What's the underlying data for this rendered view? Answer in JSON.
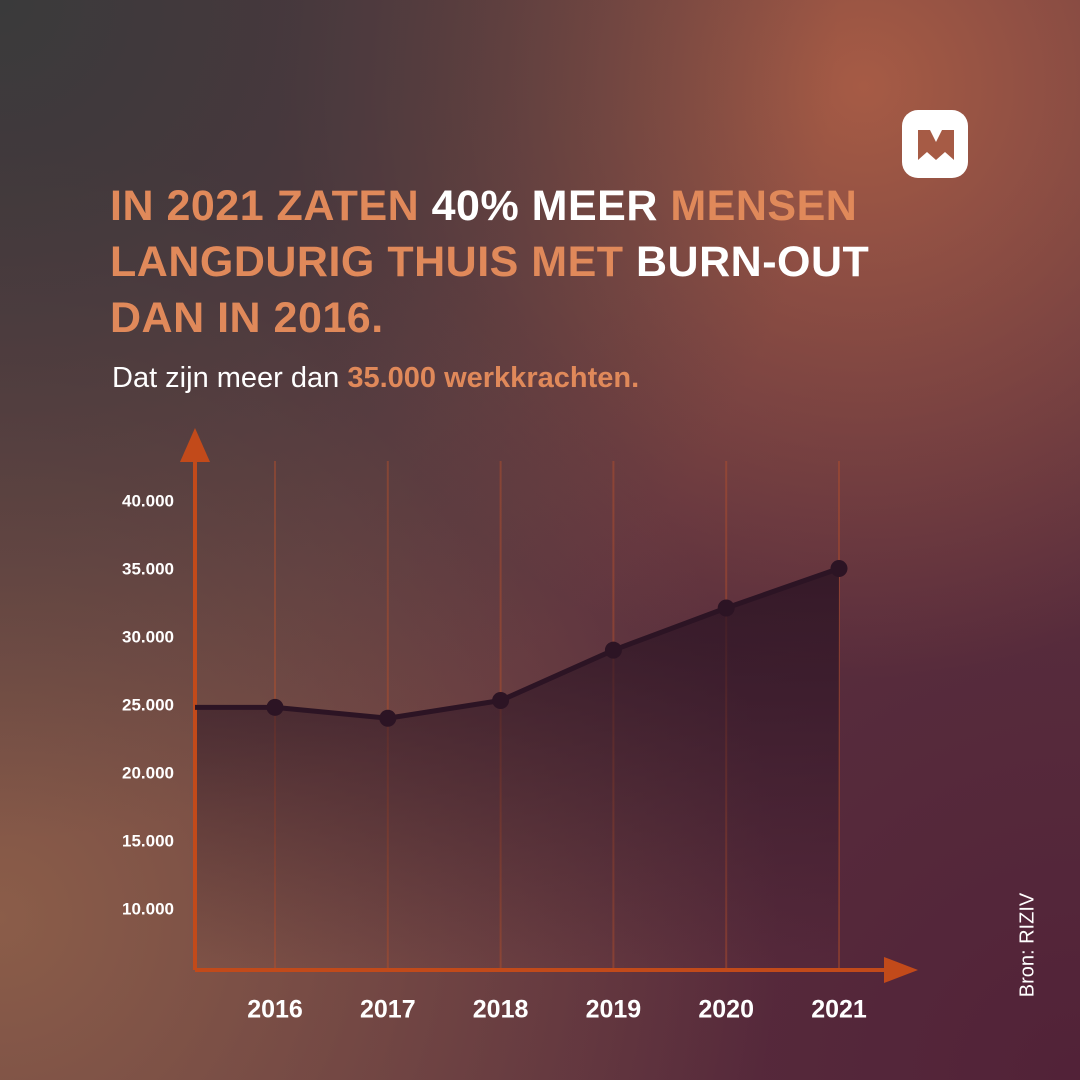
{
  "chart_data": {
    "type": "line",
    "title": [
      [
        {
          "text": "IN 2021 ZATEN ",
          "color": "#e0895a"
        },
        {
          "text": "40% MEER ",
          "color": "#ffffff"
        },
        {
          "text": "MENSEN",
          "color": "#e0895a"
        }
      ],
      [
        {
          "text": "LANGDURIG THUIS MET ",
          "color": "#e0895a"
        },
        {
          "text": "BURN-OUT",
          "color": "#ffffff"
        }
      ],
      [
        {
          "text": "DAN IN 2016.",
          "color": "#e0895a"
        }
      ]
    ],
    "subtitle": [
      {
        "text": "Dat zijn meer dan ",
        "color": "#ffffff"
      },
      {
        "text": "35.000 werkkrachten.",
        "color": "#e0895a"
      }
    ],
    "source": "Bron: RIZIV",
    "categories": [
      "2016",
      "2017",
      "2018",
      "2019",
      "2020",
      "2021"
    ],
    "values": [
      24900,
      24100,
      25400,
      29100,
      32200,
      35100
    ],
    "color": "#2c1424",
    "ylim": [
      5600,
      43000
    ],
    "yticks": [
      {
        "value": 10000,
        "label": "10.000"
      },
      {
        "value": 15000,
        "label": "15.000"
      },
      {
        "value": 20000,
        "label": "20.000"
      },
      {
        "value": 25000,
        "label": "25.000"
      },
      {
        "value": 30000,
        "label": "30.000"
      },
      {
        "value": 35000,
        "label": "35.000"
      },
      {
        "value": 40000,
        "label": "40.000"
      }
    ]
  }
}
